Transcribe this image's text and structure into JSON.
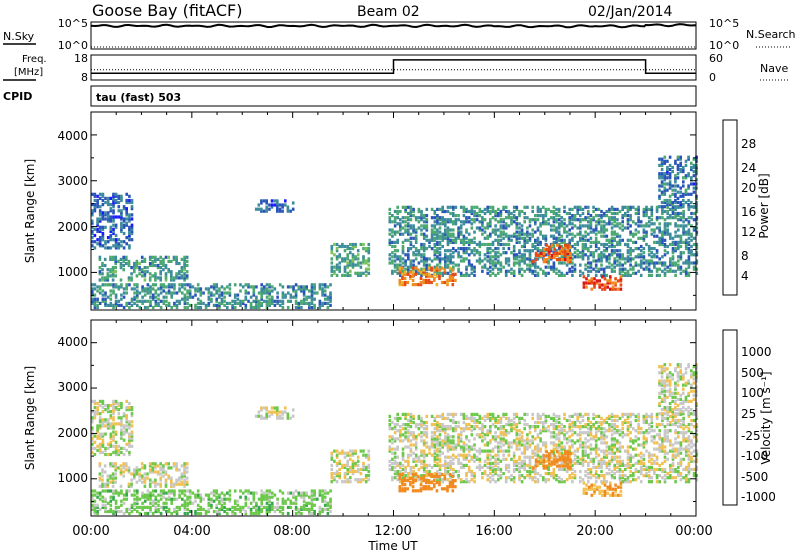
{
  "header": {
    "station": "Goose Bay (fitACF)",
    "beam": "Beam 02",
    "date": "02/Jan/2014"
  },
  "top_panels": {
    "nsky_label": "N.Sky",
    "nsky_ticks": [
      "10^5",
      "10^0"
    ],
    "nsearch_label": "N.Search",
    "nsearch_ticks": [
      "10^5",
      "10^0"
    ],
    "freq_label_line1": "Freq.",
    "freq_label_line2": "[MHz]",
    "freq_ticks": [
      "18",
      "8"
    ],
    "nave_label": "Nave",
    "nave_ticks": [
      "60",
      "0"
    ],
    "cpid_label": "CPID",
    "cpid_text": "tau (fast) 503"
  },
  "time_axis": {
    "label": "Time UT",
    "ticks": [
      "00:00",
      "04:00",
      "08:00",
      "12:00",
      "16:00",
      "20:00",
      "00:00"
    ]
  },
  "power_panel": {
    "ylabel": "Slant Range [km]",
    "yticks": [
      "1000",
      "2000",
      "3000",
      "4000"
    ],
    "colorbar_label": "Power [dB]",
    "colorbar_ticks": [
      "28",
      "24",
      "20",
      "16",
      "12",
      "8",
      "4"
    ]
  },
  "velocity_panel": {
    "ylabel": "Slant Range [km]",
    "yticks": [
      "1000",
      "2000",
      "3000",
      "4000"
    ],
    "colorbar_label": "Velocity [m s⁻¹]",
    "colorbar_ticks": [
      "1000",
      "500",
      "100",
      "25",
      "-25",
      "-100",
      "-500",
      "-1000"
    ]
  },
  "colors": {
    "power_scale": [
      "#1a1aff",
      "#2a55b8",
      "#3c8c9c",
      "#4aa870",
      "#7cc25a",
      "#e8b42a",
      "#f08a1e",
      "#e84a14",
      "#dc1414"
    ],
    "velocity_scale": [
      "#1a3fbf",
      "#3c78c8",
      "#38a84e",
      "#6cc84a",
      "#c8c8c8",
      "#f0c050",
      "#f08a1e",
      "#e84a14",
      "#dc1414"
    ]
  },
  "chart_data": [
    {
      "type": "line",
      "title": "N.Sky / N.Search",
      "x": [
        "00:00",
        "04:00",
        "08:00",
        "12:00",
        "16:00",
        "20:00",
        "22:00",
        "00:00"
      ],
      "series": [
        {
          "name": "N.Sky",
          "values": [
            40000,
            38000,
            39000,
            40000,
            33000,
            34000,
            58000,
            50000
          ]
        },
        {
          "name": "N.Search",
          "values": [
            1,
            1,
            1,
            1,
            1,
            1,
            1,
            1
          ]
        }
      ],
      "yscale": "log",
      "ylim": [
        1,
        100000
      ]
    },
    {
      "type": "line",
      "title": "Freq. / Nave",
      "x": [
        "00:00",
        "12:00",
        "12:00",
        "22:00",
        "22:00",
        "00:00"
      ],
      "series": [
        {
          "name": "Freq.",
          "values": [
            10.6,
            10.6,
            16.7,
            16.7,
            10.6,
            10.6
          ]
        },
        {
          "name": "Nave",
          "values": [
            25,
            25,
            25,
            25,
            25,
            25
          ]
        }
      ],
      "ylim": [
        8,
        18
      ]
    },
    {
      "type": "heatmap",
      "title": "Power",
      "xlabel": "Time UT",
      "ylabel": "Slant Range [km]",
      "x_range_hours": [
        0,
        24
      ],
      "ylim": [
        180,
        4500
      ],
      "value_range_db": [
        0,
        30
      ],
      "echo_regions": [
        {
          "t_start": 0.0,
          "t_end": 1.6,
          "r_min": 1500,
          "r_max": 2700,
          "power_db": 6
        },
        {
          "t_start": 0.3,
          "t_end": 3.8,
          "r_min": 800,
          "r_max": 1300,
          "power_db": 10
        },
        {
          "t_start": 0.0,
          "t_end": 9.5,
          "r_min": 200,
          "r_max": 700,
          "power_db": 9
        },
        {
          "t_start": 6.5,
          "t_end": 8.0,
          "r_min": 2300,
          "r_max": 2550,
          "power_db": 6
        },
        {
          "t_start": 9.5,
          "t_end": 11.0,
          "r_min": 900,
          "r_max": 1600,
          "power_db": 11
        },
        {
          "t_start": 11.8,
          "t_end": 24.0,
          "r_min": 900,
          "r_max": 2400,
          "power_db": 9
        },
        {
          "t_start": 12.2,
          "t_end": 14.5,
          "r_min": 700,
          "r_max": 1100,
          "power_db": 22
        },
        {
          "t_start": 17.5,
          "t_end": 19.0,
          "r_min": 1200,
          "r_max": 1600,
          "power_db": 24
        },
        {
          "t_start": 19.5,
          "t_end": 21.0,
          "r_min": 600,
          "r_max": 900,
          "power_db": 25
        },
        {
          "t_start": 22.5,
          "t_end": 24.0,
          "r_min": 2400,
          "r_max": 3500,
          "power_db": 7
        }
      ]
    },
    {
      "type": "heatmap",
      "title": "Velocity",
      "xlabel": "Time UT",
      "ylabel": "Slant Range [km]",
      "x_range_hours": [
        0,
        24
      ],
      "ylim": [
        180,
        4500
      ],
      "value_range": [
        -1000,
        1000
      ],
      "echo_regions": [
        {
          "t_start": 0.0,
          "t_end": 1.6,
          "r_min": 1500,
          "r_max": 2700,
          "velocity": 0
        },
        {
          "t_start": 0.3,
          "t_end": 3.8,
          "r_min": 800,
          "r_max": 1300,
          "velocity": 0
        },
        {
          "t_start": 0.0,
          "t_end": 9.5,
          "r_min": 200,
          "r_max": 700,
          "velocity": 60
        },
        {
          "t_start": 6.5,
          "t_end": 8.0,
          "r_min": 2300,
          "r_max": 2550,
          "velocity": 0
        },
        {
          "t_start": 9.5,
          "t_end": 11.0,
          "r_min": 900,
          "r_max": 1600,
          "velocity": 0
        },
        {
          "t_start": 11.8,
          "t_end": 24.0,
          "r_min": 900,
          "r_max": 2400,
          "velocity": 0
        },
        {
          "t_start": 12.2,
          "t_end": 14.5,
          "r_min": 700,
          "r_max": 1100,
          "velocity": -200
        },
        {
          "t_start": 17.5,
          "t_end": 19.0,
          "r_min": 1200,
          "r_max": 1600,
          "velocity": -150
        },
        {
          "t_start": 19.5,
          "t_end": 21.0,
          "r_min": 600,
          "r_max": 900,
          "velocity": -100
        },
        {
          "t_start": 22.5,
          "t_end": 24.0,
          "r_min": 2400,
          "r_max": 3500,
          "velocity": 0
        }
      ]
    }
  ]
}
